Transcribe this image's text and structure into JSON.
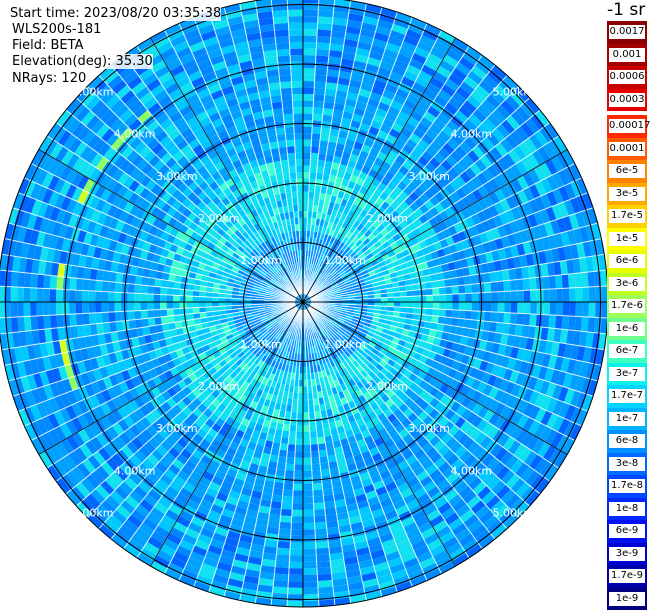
{
  "info": {
    "start_time": "Start time: 2023/08/20 03:35:38",
    "site": "WLS200s-181",
    "field": "Field: BETA",
    "elevation": "Elevation(deg): 35.30",
    "nrays": "NRays: 120"
  },
  "colorbar": {
    "unit_label": "-1 sr",
    "upper_bins": [
      {
        "label": "0.0017",
        "color": "#8b0000"
      },
      {
        "label": "0.001",
        "color": "#a50000"
      },
      {
        "label": "0.0006",
        "color": "#c80000"
      },
      {
        "label": "0.0003",
        "color": "#e80000"
      }
    ],
    "bins": [
      {
        "label": "0.00017",
        "color": "#ff2a00"
      },
      {
        "label": "0.0001",
        "color": "#ff5a00"
      },
      {
        "label": "6e-5",
        "color": "#ff8200"
      },
      {
        "label": "3e-5",
        "color": "#ffa800"
      },
      {
        "label": "1.7e-5",
        "color": "#ffd000"
      },
      {
        "label": "1e-5",
        "color": "#ffff00"
      },
      {
        "label": "6e-6",
        "color": "#e6ff00"
      },
      {
        "label": "3e-6",
        "color": "#c0ff20"
      },
      {
        "label": "1.7e-6",
        "color": "#9cff5a"
      },
      {
        "label": "1e-6",
        "color": "#6cff8c"
      },
      {
        "label": "6e-7",
        "color": "#3cffc0"
      },
      {
        "label": "3e-7",
        "color": "#10f0ea"
      },
      {
        "label": "1.7e-7",
        "color": "#00d4ff"
      },
      {
        "label": "1e-7",
        "color": "#00b4ff"
      },
      {
        "label": "6e-8",
        "color": "#0090ff"
      },
      {
        "label": "3e-8",
        "color": "#006cff"
      },
      {
        "label": "1.7e-8",
        "color": "#0048ff"
      },
      {
        "label": "1e-8",
        "color": "#0028ff"
      },
      {
        "label": "6e-9",
        "color": "#0010f0"
      },
      {
        "label": "3e-9",
        "color": "#0000d0"
      },
      {
        "label": "1.7e-9",
        "color": "#0000a8"
      },
      {
        "label": "1e-9",
        "color": "#000080"
      }
    ]
  },
  "range_rings": {
    "labels": [
      "1.00km",
      "2.00km",
      "3.00km",
      "4.00km",
      "5.00km"
    ],
    "label_color": "#ffffff"
  },
  "ppi_colors": {
    "palette": [
      "#00a0ff",
      "#0088ff",
      "#00c8ff",
      "#10e0f0",
      "#40ffd0",
      "#0064ff",
      "#90ff60",
      "#d8ff20"
    ],
    "ring_line_color": "#000000",
    "ray_gap_color": "#ffffff"
  }
}
